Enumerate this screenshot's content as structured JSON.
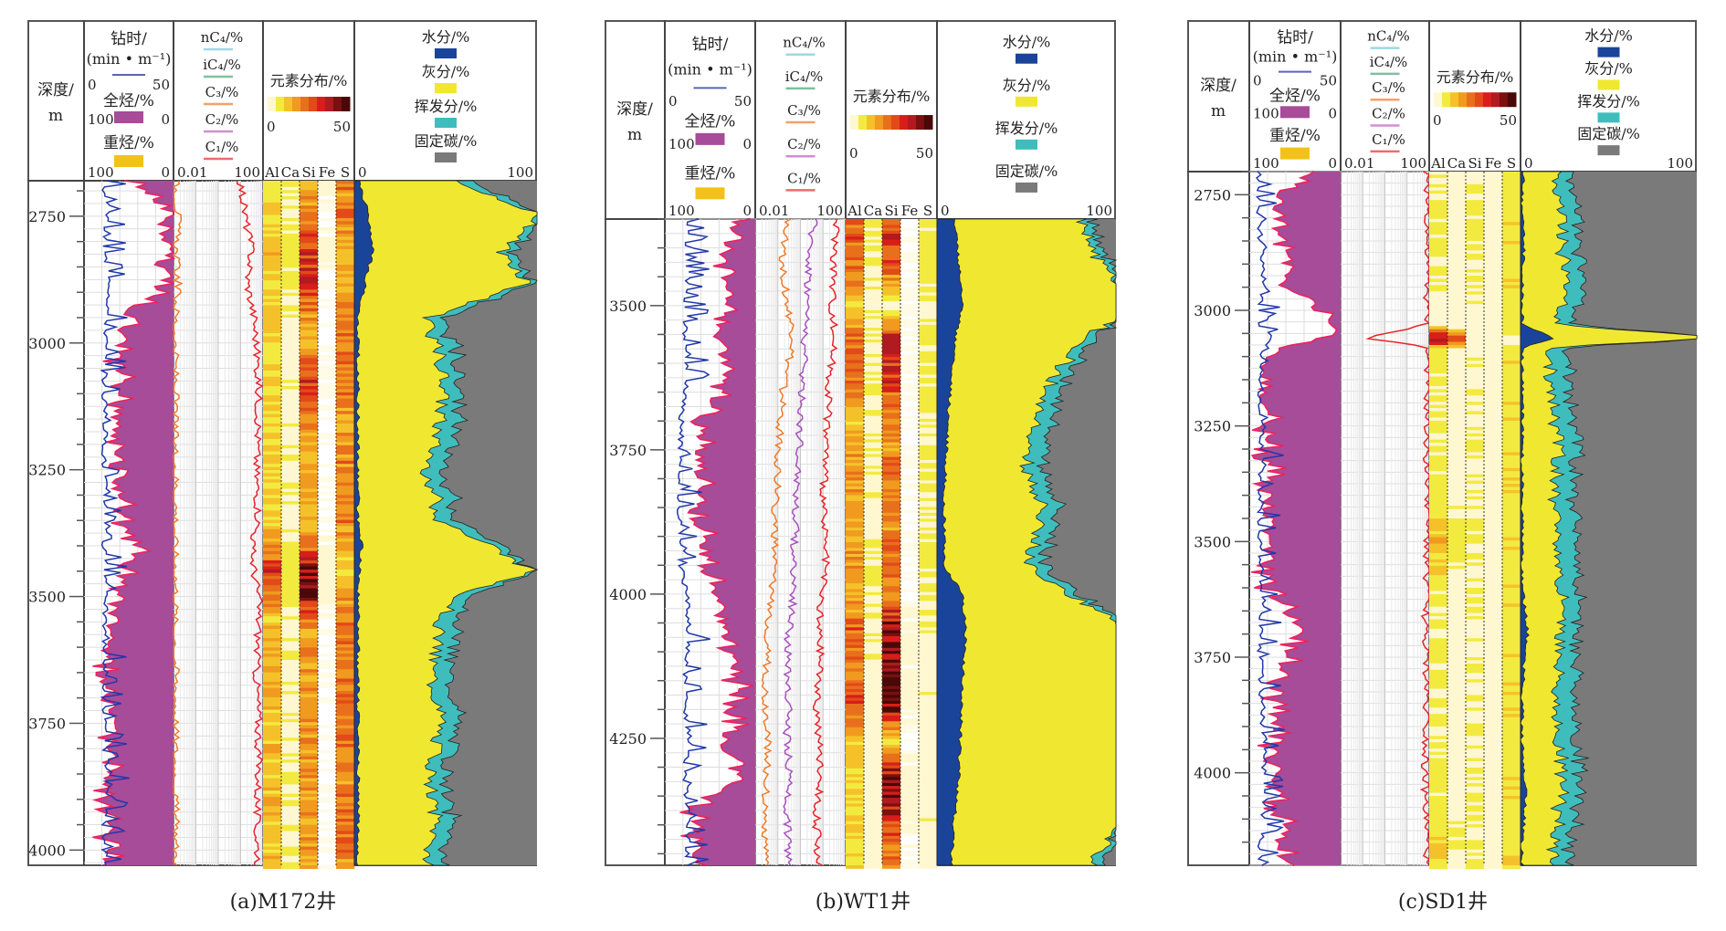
{
  "figure": {
    "type": "well-log composite",
    "captions": [
      "(a)M172井",
      "(b)WT1井",
      "(c)SD1井"
    ]
  },
  "header": {
    "depth_label": [
      "深度/",
      "m"
    ],
    "drill_time": {
      "label": [
        "钻时/",
        "(min • m⁻¹)"
      ],
      "min": "0",
      "max": "50",
      "color": "#5a64b8"
    },
    "total_gas": {
      "label": "全烃/%",
      "min": "100",
      "max": "0",
      "color": "#a64c98"
    },
    "heavy_gas": {
      "label": "重烃/%",
      "min": "100",
      "max": "0",
      "color": "#f2c21a"
    },
    "gas_components": {
      "items": [
        {
          "label": "nC₄/%",
          "color": "#9fd8e4"
        },
        {
          "label": "iC₄/%",
          "color": "#7fbf9f"
        },
        {
          "label": "C₃/%",
          "color": "#f5a06a"
        },
        {
          "label": "C₂/%",
          "color": "#d28ed0"
        },
        {
          "label": "C₁/%",
          "color": "#f06a6a"
        }
      ],
      "min": "0.01",
      "max": "100",
      "scale": "log"
    },
    "elements": {
      "label": "元素分布/%",
      "min": "0",
      "max": "50",
      "colormap": [
        "#fff7d0",
        "#f3ea40",
        "#f5c12a",
        "#f09a20",
        "#e8701c",
        "#e24a18",
        "#d81e1a",
        "#b01a20",
        "#7a1010",
        "#4a0808"
      ],
      "columns": [
        "Al",
        "Ca",
        "Si",
        "Fe",
        "S"
      ]
    },
    "proximate": {
      "items": [
        {
          "label": "水分/%",
          "color": "#1a449a"
        },
        {
          "label": "灰分/%",
          "color": "#f0e830"
        },
        {
          "label": "挥发分/%",
          "color": "#3fbdbd"
        },
        {
          "label": "固定碳/%",
          "color": "#7a7a7a"
        }
      ],
      "min": "0",
      "max": "100"
    }
  },
  "chart_data": [
    {
      "type": "well-log",
      "title": "(a)M172井",
      "depth_unit": "m",
      "depth_range": [
        2680,
        4030
      ],
      "depth_ticks": [
        2750,
        3000,
        3250,
        3500,
        3750,
        4000
      ],
      "depth": [
        2680,
        2750,
        2820,
        2880,
        2950,
        3000,
        3080,
        3150,
        3250,
        3350,
        3400,
        3450,
        3500,
        3550,
        3650,
        3750,
        3850,
        3950,
        4030
      ],
      "drill_time": [
        8,
        10,
        8,
        12,
        10,
        9,
        8,
        9,
        8,
        10,
        8,
        9,
        10,
        8,
        9,
        8,
        10,
        8,
        9
      ],
      "total_gas": [
        40,
        10,
        5,
        8,
        55,
        60,
        62,
        60,
        65,
        60,
        40,
        55,
        62,
        70,
        75,
        72,
        70,
        74,
        70
      ],
      "c1_log": [
        1.0,
        1.2,
        1.5,
        1.3,
        1.6,
        1.7,
        1.8,
        1.8,
        1.7,
        1.8,
        1.5,
        1.6,
        1.8,
        1.8,
        1.7,
        1.8,
        1.8,
        1.7,
        1.8
      ],
      "c3_log": [
        -1.9,
        -1.8,
        -1.9,
        -1.8,
        -1.9,
        -1.95,
        -1.9,
        -1.95,
        -1.9,
        -1.9,
        -1.95,
        -1.9,
        -1.9,
        -1.95,
        -1.9,
        -1.9,
        -1.95,
        -1.9,
        -1.9
      ],
      "elements": {
        "Al": [
          8,
          10,
          14,
          10,
          12,
          8,
          10,
          9,
          10,
          10,
          22,
          30,
          20,
          12,
          14,
          12,
          14,
          12,
          12
        ],
        "Ca": [
          6,
          5,
          8,
          6,
          4,
          3,
          5,
          4,
          5,
          4,
          6,
          8,
          6,
          4,
          5,
          4,
          5,
          4,
          5
        ],
        "Si": [
          12,
          20,
          30,
          35,
          16,
          14,
          30,
          20,
          14,
          14,
          18,
          45,
          35,
          18,
          18,
          16,
          18,
          16,
          16
        ],
        "Fe": [
          2,
          1,
          2,
          1,
          1,
          1,
          1,
          1,
          1,
          1,
          2,
          3,
          2,
          1,
          1,
          1,
          1,
          1,
          1
        ],
        "S": [
          20,
          22,
          12,
          14,
          20,
          22,
          20,
          18,
          20,
          20,
          14,
          10,
          18,
          22,
          20,
          22,
          20,
          22,
          20
        ]
      },
      "moisture": [
        2,
        8,
        10,
        6,
        2,
        2,
        2,
        2,
        2,
        2,
        4,
        3,
        2,
        2,
        2,
        2,
        2,
        2,
        2
      ],
      "ash": [
        50,
        95,
        70,
        90,
        40,
        42,
        48,
        45,
        38,
        45,
        70,
        95,
        55,
        45,
        40,
        45,
        40,
        42,
        38
      ],
      "volatile": [
        8,
        4,
        6,
        4,
        8,
        10,
        8,
        10,
        9,
        9,
        6,
        2,
        8,
        10,
        9,
        10,
        8,
        9,
        9
      ]
    },
    {
      "type": "well-log",
      "title": "(b)WT1井",
      "depth_unit": "m",
      "depth_range": [
        3350,
        4470
      ],
      "depth_ticks": [
        3500,
        3750,
        4000,
        4250
      ],
      "depth": [
        3350,
        3420,
        3500,
        3560,
        3620,
        3700,
        3780,
        3850,
        3950,
        4000,
        4060,
        4120,
        4180,
        4250,
        4320,
        4380,
        4470
      ],
      "drill_time": [
        8,
        10,
        9,
        8,
        10,
        6,
        5,
        5,
        6,
        9,
        10,
        9,
        8,
        10,
        8,
        10,
        9
      ],
      "total_gas": [
        20,
        35,
        30,
        40,
        30,
        62,
        60,
        58,
        55,
        40,
        35,
        25,
        20,
        30,
        15,
        70,
        60
      ],
      "c1_log": [
        1.6,
        1.5,
        1.4,
        1.5,
        1.3,
        1.2,
        1.1,
        1.0,
        1.1,
        0.9,
        0.8,
        0.9,
        0.7,
        0.8,
        0.9,
        0.7,
        0.8
      ],
      "c2_log": [
        0.6,
        0.4,
        0.3,
        0.2,
        0.1,
        0.0,
        -0.1,
        -0.2,
        -0.3,
        -0.3,
        -0.5,
        -0.6,
        -0.5,
        -0.6,
        -0.5,
        -0.6,
        -0.5
      ],
      "c3_log": [
        -0.5,
        -0.8,
        -0.6,
        -0.3,
        -0.7,
        -0.9,
        -1.0,
        -1.1,
        -1.2,
        -1.3,
        -1.4,
        -1.5,
        -1.6,
        -1.4,
        -1.5,
        -1.6,
        -1.5
      ],
      "elements": {
        "Al": [
          22,
          25,
          10,
          24,
          22,
          12,
          20,
          14,
          18,
          14,
          24,
          20,
          26,
          14,
          8,
          10,
          10
        ],
        "Ca": [
          6,
          5,
          4,
          6,
          5,
          4,
          5,
          4,
          6,
          4,
          5,
          4,
          4,
          4,
          3,
          3,
          3
        ],
        "Si": [
          30,
          28,
          2,
          35,
          30,
          18,
          22,
          18,
          24,
          18,
          45,
          40,
          48,
          8,
          42,
          36,
          20
        ],
        "Fe": [
          1,
          1,
          1,
          1,
          1,
          1,
          1,
          1,
          1,
          1,
          2,
          2,
          2,
          1,
          2,
          2,
          1
        ],
        "S": [
          6,
          6,
          5,
          6,
          6,
          5,
          6,
          5,
          6,
          5,
          4,
          4,
          4,
          4,
          4,
          4,
          4
        ]
      },
      "moisture": [
        10,
        12,
        14,
        10,
        8,
        6,
        5,
        4,
        4,
        14,
        16,
        15,
        14,
        13,
        12,
        10,
        8
      ],
      "ash": [
        70,
        78,
        98,
        72,
        58,
        48,
        45,
        55,
        48,
        60,
        90,
        96,
        98,
        98,
        98,
        98,
        78
      ],
      "volatile": [
        6,
        5,
        0,
        6,
        8,
        10,
        10,
        9,
        8,
        6,
        3,
        2,
        0,
        0,
        0,
        0,
        6
      ]
    },
    {
      "type": "well-log",
      "title": "(c)SD1井",
      "depth_unit": "m",
      "depth_range": [
        2700,
        4200
      ],
      "depth_ticks": [
        2750,
        3000,
        3250,
        3500,
        3750,
        4000
      ],
      "depth": [
        2700,
        2760,
        2850,
        2950,
        3030,
        3060,
        3080,
        3120,
        3200,
        3300,
        3400,
        3500,
        3600,
        3700,
        3750,
        3850,
        3950,
        4050,
        4150,
        4200
      ],
      "drill_time": [
        2,
        2,
        3,
        5,
        2,
        10,
        3,
        4,
        3,
        4,
        3,
        3,
        4,
        3,
        3,
        4,
        5,
        6,
        3,
        3
      ],
      "total_gas": [
        35,
        70,
        62,
        55,
        5,
        5,
        70,
        80,
        82,
        78,
        80,
        80,
        78,
        45,
        60,
        70,
        72,
        70,
        65,
        62
      ],
      "c1_log": [
        1.9,
        1.95,
        1.9,
        1.9,
        1.9,
        -0.8,
        1.9,
        1.95,
        1.9,
        1.9,
        1.95,
        1.9,
        1.9,
        1.8,
        1.85,
        1.9,
        1.85,
        1.8,
        1.9,
        1.9
      ],
      "elements": {
        "Al": [
          4,
          5,
          6,
          5,
          4,
          40,
          5,
          6,
          5,
          6,
          6,
          14,
          6,
          5,
          6,
          6,
          5,
          6,
          12,
          6
        ],
        "Ca": [
          3,
          3,
          3,
          3,
          2,
          30,
          3,
          3,
          3,
          3,
          3,
          8,
          3,
          3,
          3,
          3,
          3,
          3,
          6,
          3
        ],
        "Si": [
          4,
          5,
          6,
          5,
          4,
          2,
          4,
          5,
          5,
          5,
          5,
          6,
          5,
          4,
          5,
          5,
          5,
          5,
          5,
          5
        ],
        "Fe": [
          3,
          3,
          3,
          3,
          3,
          2,
          3,
          3,
          3,
          3,
          3,
          3,
          3,
          3,
          3,
          3,
          3,
          3,
          3,
          3
        ],
        "S": [
          6,
          8,
          8,
          8,
          8,
          2,
          8,
          8,
          8,
          8,
          8,
          8,
          8,
          8,
          8,
          8,
          8,
          8,
          8,
          8
        ]
      },
      "moisture": [
        2,
        1,
        2,
        1,
        1,
        20,
        1,
        1,
        1,
        1,
        1,
        1,
        1,
        4,
        2,
        1,
        1,
        3,
        1,
        1
      ],
      "ash": [
        18,
        20,
        22,
        25,
        18,
        100,
        15,
        15,
        18,
        20,
        18,
        20,
        22,
        18,
        20,
        18,
        22,
        20,
        18,
        20
      ],
      "volatile": [
        8,
        10,
        9,
        10,
        9,
        0,
        10,
        12,
        10,
        11,
        10,
        11,
        10,
        9,
        10,
        11,
        10,
        10,
        9,
        10
      ]
    }
  ]
}
